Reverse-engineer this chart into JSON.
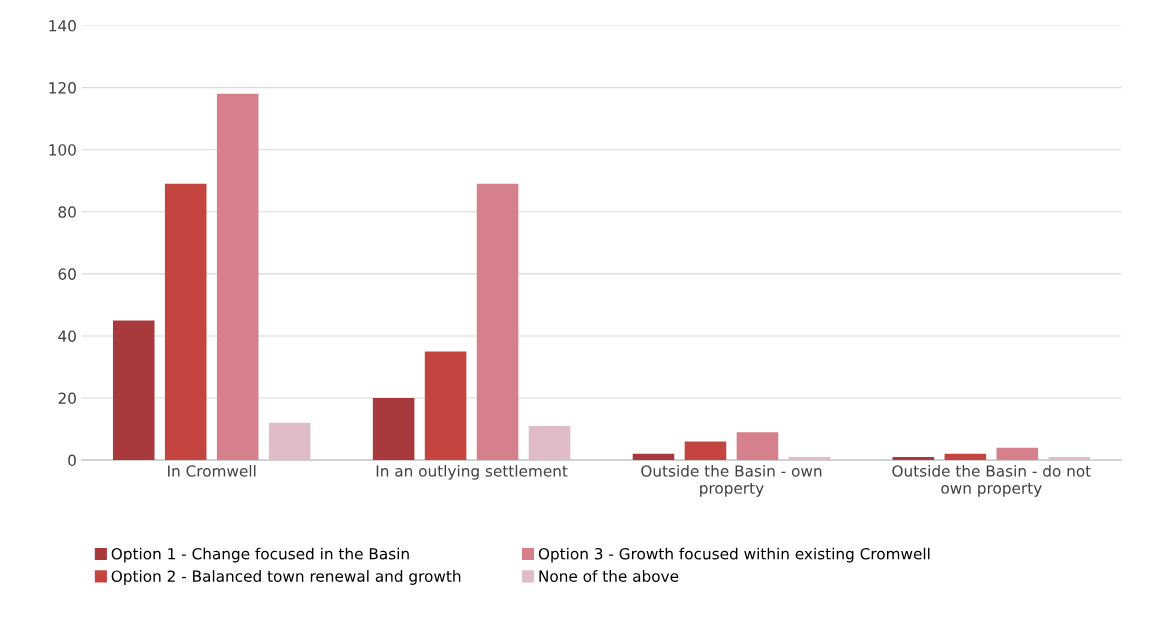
{
  "chart_data": {
    "type": "bar",
    "categories": [
      "In Cromwell",
      "In an outlying settlement",
      "Outside the Basin - own\nproperty",
      "Outside the Basin - do not\nown property"
    ],
    "series": [
      {
        "name": "Option 1 - Change focused in the Basin",
        "color": "#a83a3e",
        "values": [
          45,
          20,
          2,
          1
        ]
      },
      {
        "name": "Option 2 - Balanced town renewal and growth",
        "color": "#c4453f",
        "values": [
          89,
          35,
          6,
          2
        ]
      },
      {
        "name": "Option 3 - Growth focused within existing Cromwell",
        "color": "#d5808a",
        "values": [
          118,
          89,
          9,
          4
        ]
      },
      {
        "name": "None of the above",
        "color": "#dfbcc6",
        "values": [
          12,
          11,
          1,
          1
        ]
      }
    ],
    "ylim": [
      0,
      140
    ],
    "yticks": [
      0,
      20,
      40,
      60,
      80,
      100,
      120,
      140
    ],
    "grid": "y",
    "legend": "bottom"
  }
}
